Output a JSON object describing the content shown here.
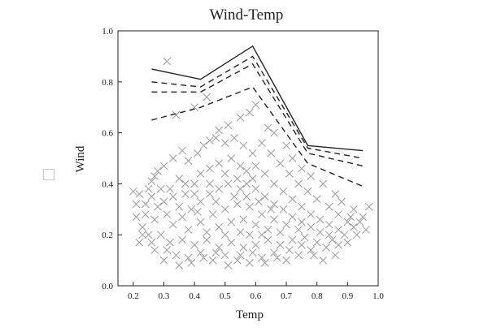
{
  "chart_data": {
    "type": "scatter",
    "title": "Wind-Temp",
    "xlabel": "Temp",
    "ylabel": "Wind",
    "xlim": [
      0.15,
      1.0
    ],
    "ylim": [
      0.0,
      1.0
    ],
    "xticks": [
      "0.2",
      "0.3",
      "0.4",
      "0.5",
      "0.6",
      "0.7",
      "0.8",
      "0.9",
      "1.0"
    ],
    "yticks": [
      "0.0",
      "0.2",
      "0.4",
      "0.6",
      "0.8",
      "1.0"
    ],
    "grid": false,
    "marker": "x",
    "scatter_color": "#9a9a9a",
    "line_color": "#222222",
    "points": [
      [
        0.31,
        0.88
      ],
      [
        0.34,
        0.67
      ],
      [
        0.4,
        0.7
      ],
      [
        0.44,
        0.74
      ],
      [
        0.45,
        0.57
      ],
      [
        0.48,
        0.61
      ],
      [
        0.51,
        0.63
      ],
      [
        0.55,
        0.66
      ],
      [
        0.6,
        0.71
      ],
      [
        0.58,
        0.68
      ],
      [
        0.64,
        0.62
      ],
      [
        0.66,
        0.6
      ],
      [
        0.7,
        0.55
      ],
      [
        0.72,
        0.5
      ],
      [
        0.75,
        0.46
      ],
      [
        0.78,
        0.43
      ],
      [
        0.82,
        0.4
      ],
      [
        0.86,
        0.36
      ],
      [
        0.88,
        0.33
      ],
      [
        0.92,
        0.3
      ],
      [
        0.95,
        0.27
      ],
      [
        0.97,
        0.31
      ],
      [
        0.96,
        0.22
      ],
      [
        0.93,
        0.2
      ],
      [
        0.2,
        0.37
      ],
      [
        0.21,
        0.27
      ],
      [
        0.22,
        0.17
      ],
      [
        0.24,
        0.32
      ],
      [
        0.26,
        0.41
      ],
      [
        0.23,
        0.23
      ],
      [
        0.28,
        0.45
      ],
      [
        0.3,
        0.47
      ],
      [
        0.33,
        0.5
      ],
      [
        0.36,
        0.53
      ],
      [
        0.38,
        0.49
      ],
      [
        0.41,
        0.52
      ],
      [
        0.43,
        0.55
      ],
      [
        0.47,
        0.58
      ],
      [
        0.5,
        0.56
      ],
      [
        0.53,
        0.58
      ],
      [
        0.56,
        0.55
      ],
      [
        0.59,
        0.52
      ],
      [
        0.62,
        0.56
      ],
      [
        0.65,
        0.52
      ],
      [
        0.68,
        0.48
      ],
      [
        0.71,
        0.44
      ],
      [
        0.74,
        0.4
      ],
      [
        0.77,
        0.37
      ],
      [
        0.8,
        0.34
      ],
      [
        0.84,
        0.31
      ],
      [
        0.87,
        0.28
      ],
      [
        0.9,
        0.25
      ],
      [
        0.92,
        0.23
      ],
      [
        0.9,
        0.17
      ],
      [
        0.86,
        0.12
      ],
      [
        0.82,
        0.1
      ],
      [
        0.78,
        0.14
      ],
      [
        0.74,
        0.12
      ],
      [
        0.7,
        0.1
      ],
      [
        0.66,
        0.13
      ],
      [
        0.62,
        0.11
      ],
      [
        0.58,
        0.09
      ],
      [
        0.54,
        0.1
      ],
      [
        0.5,
        0.12
      ],
      [
        0.46,
        0.1
      ],
      [
        0.42,
        0.13
      ],
      [
        0.38,
        0.11
      ],
      [
        0.34,
        0.12
      ],
      [
        0.3,
        0.1
      ],
      [
        0.27,
        0.14
      ],
      [
        0.25,
        0.2
      ],
      [
        0.27,
        0.26
      ],
      [
        0.3,
        0.33
      ],
      [
        0.32,
        0.38
      ],
      [
        0.35,
        0.42
      ],
      [
        0.37,
        0.36
      ],
      [
        0.4,
        0.4
      ],
      [
        0.42,
        0.44
      ],
      [
        0.45,
        0.46
      ],
      [
        0.48,
        0.48
      ],
      [
        0.52,
        0.5
      ],
      [
        0.55,
        0.47
      ],
      [
        0.57,
        0.45
      ],
      [
        0.6,
        0.47
      ],
      [
        0.63,
        0.44
      ],
      [
        0.66,
        0.4
      ],
      [
        0.69,
        0.37
      ],
      [
        0.72,
        0.34
      ],
      [
        0.75,
        0.31
      ],
      [
        0.78,
        0.28
      ],
      [
        0.81,
        0.26
      ],
      [
        0.84,
        0.24
      ],
      [
        0.87,
        0.22
      ],
      [
        0.89,
        0.2
      ],
      [
        0.85,
        0.18
      ],
      [
        0.8,
        0.17
      ],
      [
        0.76,
        0.19
      ],
      [
        0.72,
        0.18
      ],
      [
        0.68,
        0.16
      ],
      [
        0.64,
        0.18
      ],
      [
        0.6,
        0.16
      ],
      [
        0.56,
        0.15
      ],
      [
        0.52,
        0.17
      ],
      [
        0.48,
        0.15
      ],
      [
        0.44,
        0.18
      ],
      [
        0.4,
        0.16
      ],
      [
        0.36,
        0.18
      ],
      [
        0.32,
        0.17
      ],
      [
        0.29,
        0.2
      ],
      [
        0.33,
        0.24
      ],
      [
        0.36,
        0.27
      ],
      [
        0.39,
        0.3
      ],
      [
        0.42,
        0.33
      ],
      [
        0.45,
        0.36
      ],
      [
        0.48,
        0.38
      ],
      [
        0.51,
        0.4
      ],
      [
        0.54,
        0.42
      ],
      [
        0.57,
        0.4
      ],
      [
        0.6,
        0.38
      ],
      [
        0.63,
        0.35
      ],
      [
        0.66,
        0.32
      ],
      [
        0.69,
        0.3
      ],
      [
        0.72,
        0.27
      ],
      [
        0.75,
        0.25
      ],
      [
        0.78,
        0.23
      ],
      [
        0.81,
        0.21
      ],
      [
        0.84,
        0.2
      ],
      [
        0.38,
        0.22
      ],
      [
        0.42,
        0.25
      ],
      [
        0.46,
        0.28
      ],
      [
        0.5,
        0.3
      ],
      [
        0.54,
        0.32
      ],
      [
        0.58,
        0.31
      ],
      [
        0.62,
        0.28
      ],
      [
        0.66,
        0.26
      ],
      [
        0.7,
        0.24
      ],
      [
        0.74,
        0.22
      ],
      [
        0.44,
        0.21
      ],
      [
        0.48,
        0.23
      ],
      [
        0.52,
        0.25
      ],
      [
        0.56,
        0.26
      ],
      [
        0.6,
        0.24
      ],
      [
        0.64,
        0.22
      ],
      [
        0.68,
        0.21
      ],
      [
        0.5,
        0.2
      ],
      [
        0.55,
        0.21
      ],
      [
        0.58,
        0.2
      ],
      [
        0.53,
        0.35
      ],
      [
        0.47,
        0.33
      ],
      [
        0.41,
        0.29
      ],
      [
        0.35,
        0.31
      ],
      [
        0.31,
        0.28
      ],
      [
        0.28,
        0.31
      ],
      [
        0.26,
        0.35
      ],
      [
        0.24,
        0.28
      ],
      [
        0.22,
        0.36
      ],
      [
        0.57,
        0.35
      ],
      [
        0.61,
        0.33
      ],
      [
        0.65,
        0.3
      ],
      [
        0.62,
        0.2
      ],
      [
        0.45,
        0.4
      ],
      [
        0.5,
        0.44
      ],
      [
        0.55,
        0.38
      ],
      [
        0.59,
        0.42
      ],
      [
        0.4,
        0.36
      ],
      [
        0.37,
        0.4
      ],
      [
        0.33,
        0.35
      ],
      [
        0.29,
        0.38
      ],
      [
        0.91,
        0.27
      ],
      [
        0.94,
        0.25
      ],
      [
        0.43,
        0.11
      ],
      [
        0.47,
        0.13
      ],
      [
        0.51,
        0.08
      ],
      [
        0.55,
        0.12
      ],
      [
        0.59,
        0.13
      ],
      [
        0.63,
        0.09
      ],
      [
        0.67,
        0.11
      ],
      [
        0.71,
        0.14
      ],
      [
        0.75,
        0.16
      ],
      [
        0.79,
        0.12
      ],
      [
        0.83,
        0.15
      ],
      [
        0.87,
        0.16
      ],
      [
        0.35,
        0.08
      ],
      [
        0.39,
        0.09
      ],
      [
        0.31,
        0.14
      ],
      [
        0.26,
        0.17
      ],
      [
        0.23,
        0.2
      ],
      [
        0.21,
        0.32
      ],
      [
        0.25,
        0.38
      ],
      [
        0.27,
        0.43
      ]
    ],
    "lines": [
      {
        "style": "solid",
        "x": [
          0.26,
          0.42,
          0.59,
          0.77,
          0.95
        ],
        "y": [
          0.85,
          0.81,
          0.94,
          0.55,
          0.53
        ]
      },
      {
        "style": "dashed",
        "x": [
          0.26,
          0.42,
          0.59,
          0.77,
          0.95
        ],
        "y": [
          0.8,
          0.78,
          0.9,
          0.54,
          0.5
        ]
      },
      {
        "style": "dashed",
        "x": [
          0.26,
          0.42,
          0.59,
          0.77,
          0.95
        ],
        "y": [
          0.76,
          0.76,
          0.87,
          0.52,
          0.47
        ]
      },
      {
        "style": "dashed",
        "x": [
          0.26,
          0.42,
          0.59,
          0.77,
          0.95
        ],
        "y": [
          0.65,
          0.7,
          0.78,
          0.48,
          0.39
        ]
      }
    ]
  }
}
